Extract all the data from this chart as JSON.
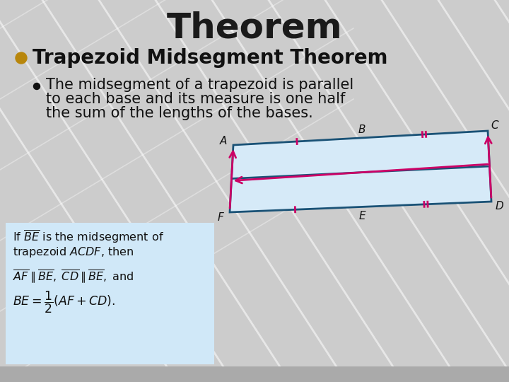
{
  "title": "Theorem",
  "title_fontsize": 36,
  "title_color": "#1a1a1a",
  "bg_color": "#cccccc",
  "bg_line_color": "#e0e0e0",
  "heading": "Trapezoid Midsegment Theorem",
  "heading_fontsize": 20,
  "heading_color": "#111111",
  "bullet_color": "#b8860b",
  "sub_bullet_color": "#111111",
  "bullet_text_lines": [
    "The midsegment of a trapezoid is parallel",
    "to each base and its measure is one half",
    "the sum of the lengths of the bases."
  ],
  "bullet_fontsize": 15,
  "info_box_bg": "#d0e8f8",
  "trap_line_color": "#1a5276",
  "trap_fill_color": "#d6eaf8",
  "arrow_color": "#cc0066",
  "tick_color": "#cc0066",
  "label_color": "#111111",
  "diag_label_fontsize": 11,
  "bottom_bar_color": "#b0b0b0"
}
